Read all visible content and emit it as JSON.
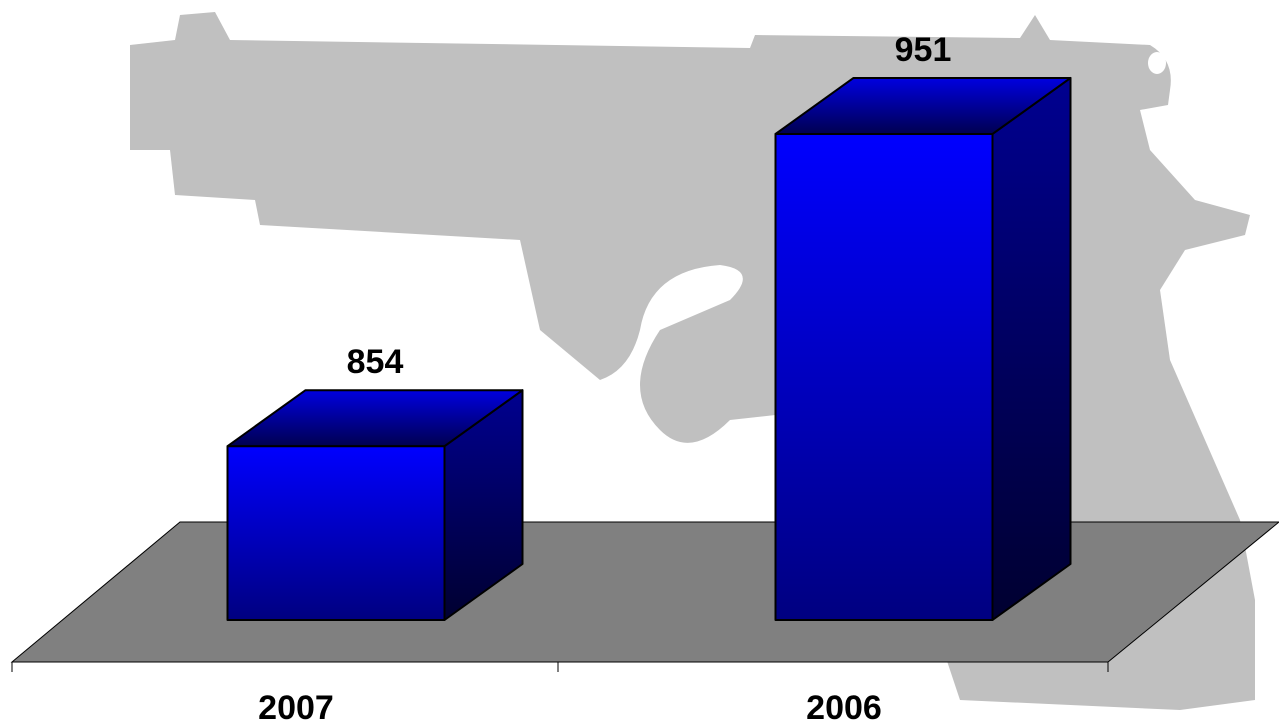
{
  "chart_data": {
    "type": "bar3d",
    "categories": [
      "2007",
      "2006"
    ],
    "values": [
      854,
      951
    ],
    "color": "#0000ff",
    "ylim": [
      800,
      960
    ]
  }
}
